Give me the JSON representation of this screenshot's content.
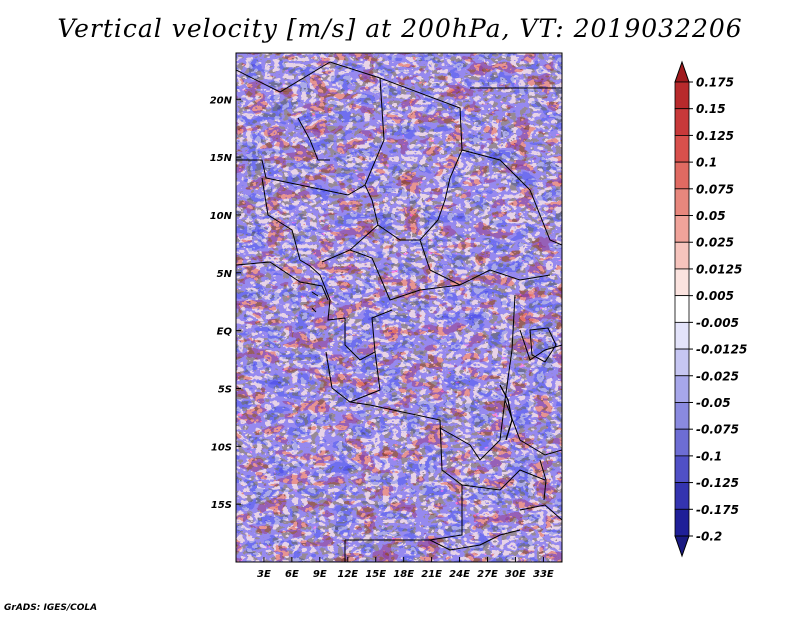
{
  "title": "Vertical velocity [m/s] at 200hPa, VT: 2019032206",
  "credit": "GrADS: IGES/COLA",
  "map": {
    "variable": "Vertical velocity",
    "units": "m/s",
    "level": "200hPa",
    "valid_time": "2019032206",
    "lon_range": [
      0,
      35
    ],
    "lat_range": [
      -20,
      24
    ],
    "lat_ticks": [
      {
        "label": "20N",
        "value": 20
      },
      {
        "label": "15N",
        "value": 15
      },
      {
        "label": "10N",
        "value": 10
      },
      {
        "label": "5N",
        "value": 5
      },
      {
        "label": "EQ",
        "value": 0
      },
      {
        "label": "5S",
        "value": -5
      },
      {
        "label": "10S",
        "value": -10
      },
      {
        "label": "15S",
        "value": -15
      }
    ],
    "lon_ticks": [
      {
        "label": "3E",
        "value": 3
      },
      {
        "label": "6E",
        "value": 6
      },
      {
        "label": "9E",
        "value": 9
      },
      {
        "label": "12E",
        "value": 12
      },
      {
        "label": "15E",
        "value": 15
      },
      {
        "label": "18E",
        "value": 18
      },
      {
        "label": "21E",
        "value": 21
      },
      {
        "label": "24E",
        "value": 24
      },
      {
        "label": "27E",
        "value": 27
      },
      {
        "label": "30E",
        "value": 30
      },
      {
        "label": "33E",
        "value": 33
      }
    ]
  },
  "colorbar": {
    "levels": [
      "0.175",
      "0.15",
      "0.125",
      "0.1",
      "0.075",
      "0.05",
      "0.025",
      "0.0125",
      "0.005",
      "-0.005",
      "-0.0125",
      "-0.025",
      "-0.05",
      "-0.075",
      "-0.1",
      "-0.125",
      "-0.175",
      "-0.2"
    ],
    "colors": [
      "#a01a1e",
      "#b82a2c",
      "#c8393a",
      "#d8504c",
      "#e06a62",
      "#e8877d",
      "#f0a39a",
      "#f6c4bd",
      "#fbe3df",
      "#ffffff",
      "#e3e3fa",
      "#c6c6f2",
      "#a7a7ea",
      "#8a8ae0",
      "#6d6dd4",
      "#5050c6",
      "#3434b0",
      "#1f1f98",
      "#1a1a82"
    ]
  }
}
